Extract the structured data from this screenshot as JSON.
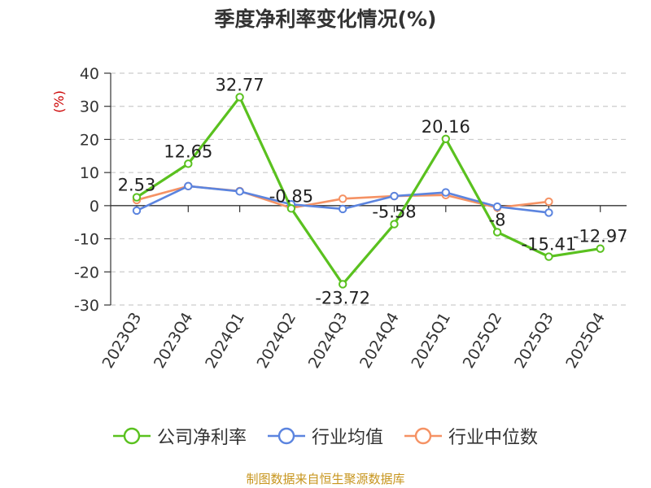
{
  "title": "季度净利率变化情况(%)",
  "source_note": "制图数据来自恒生聚源数据库",
  "chart_data": {
    "type": "line",
    "title": "季度净利率变化情况(%)",
    "ylabel": "(%)",
    "ylim": [
      -30,
      40
    ],
    "yticks": [
      40,
      30,
      20,
      10,
      0,
      -10,
      -20,
      -30
    ],
    "grid": true,
    "legend_position": "bottom",
    "categories": [
      "2023Q3",
      "2023Q4",
      "2024Q1",
      "2024Q2",
      "2024Q3",
      "2024Q4",
      "2025Q1",
      "2025Q2",
      "2025Q3",
      "2025Q4"
    ],
    "series": [
      {
        "name": "公司净利率",
        "color": "#5ac11f",
        "values": [
          2.53,
          12.65,
          32.77,
          -0.85,
          -23.72,
          -5.58,
          20.16,
          -8,
          -15.41,
          -12.97
        ],
        "labels": [
          "2.53",
          "12.65",
          "32.77",
          "-0.85",
          "-23.72",
          "-5.58",
          "20.16",
          "-8",
          "-15.41",
          "-12.97"
        ]
      },
      {
        "name": "行业均值",
        "color": "#5b84df",
        "values": [
          -1.5,
          5.9,
          4.3,
          0.4,
          -1.0,
          2.9,
          4.0,
          -0.3,
          -2.1,
          null
        ]
      },
      {
        "name": "行业中位数",
        "color": "#f59264",
        "values": [
          1.7,
          5.9,
          4.4,
          -0.7,
          2.1,
          2.9,
          3.2,
          -0.6,
          1.2,
          null
        ]
      }
    ]
  }
}
